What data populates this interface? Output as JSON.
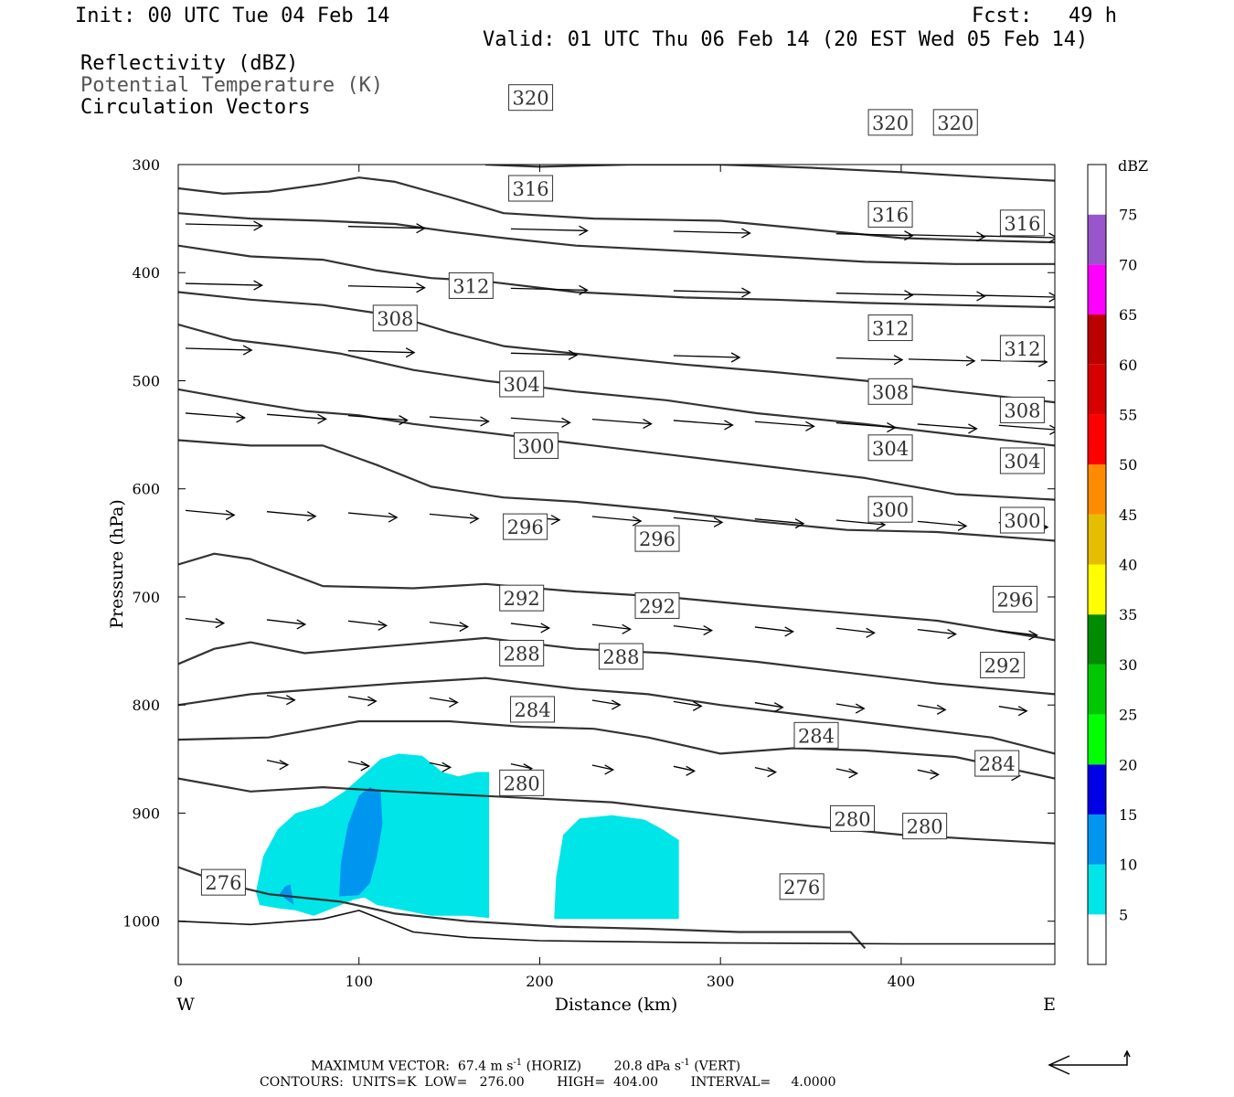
{
  "header": {
    "init": "Init: 00 UTC Tue 04 Feb 14",
    "fcst": "Fcst:   49 h",
    "valid": "Valid: 01 UTC Thu 06 Feb 14 (20 EST Wed 05 Feb 14)",
    "fields": [
      "Reflectivity (dBZ)",
      "Potential Temperature (K)",
      "Circulation Vectors"
    ]
  },
  "chart_data": {
    "type": "cross-section",
    "xlabel": "Distance (km)",
    "ylabel": "Pressure (hPa)",
    "xlim": [
      0,
      485
    ],
    "ylim": [
      1040,
      300
    ],
    "x_ticks": [
      0,
      100,
      200,
      300,
      400
    ],
    "y_ticks": [
      300,
      400,
      500,
      600,
      700,
      800,
      900,
      1000
    ],
    "west_label": "W",
    "east_label": "E",
    "colorbar": {
      "unit": "dBZ",
      "levels": [
        5,
        10,
        15,
        20,
        25,
        30,
        35,
        40,
        45,
        50,
        55,
        60,
        65,
        70,
        75
      ],
      "colors": [
        "#ffffff",
        "#00e5e8",
        "#0096f0",
        "#0000e6",
        "#00ff00",
        "#00c800",
        "#008c00",
        "#ffff00",
        "#e6be00",
        "#ff8c00",
        "#ff0000",
        "#d70000",
        "#bb0000",
        "#ff00ff",
        "#9955cc",
        "#ffffff"
      ]
    },
    "reflectivity_areas": [
      {
        "level": 5,
        "color": "#00e5e8",
        "points": [
          [
            43,
            973
          ],
          [
            47,
            940
          ],
          [
            55,
            915
          ],
          [
            65,
            900
          ],
          [
            80,
            893
          ],
          [
            92,
            880
          ],
          [
            102,
            865
          ],
          [
            112,
            850
          ],
          [
            122,
            845
          ],
          [
            135,
            847
          ],
          [
            146,
            862
          ],
          [
            155,
            866
          ],
          [
            165,
            862
          ],
          [
            172,
            862
          ],
          [
            172,
            997
          ],
          [
            160,
            995
          ],
          [
            140,
            995
          ],
          [
            125,
            990
          ],
          [
            110,
            985
          ],
          [
            103,
            978
          ],
          [
            97,
            980
          ],
          [
            90,
            985
          ],
          [
            75,
            995
          ],
          [
            65,
            990
          ],
          [
            55,
            988
          ],
          [
            45,
            985
          ]
        ]
      },
      {
        "level": 5,
        "color": "#00e5e8",
        "points": [
          [
            208,
            998
          ],
          [
            209,
            960
          ],
          [
            213,
            920
          ],
          [
            222,
            905
          ],
          [
            240,
            902
          ],
          [
            258,
            906
          ],
          [
            268,
            915
          ],
          [
            277,
            925
          ],
          [
            277,
            998
          ]
        ]
      },
      {
        "level": 10,
        "color": "#0096f0",
        "points": [
          [
            89,
            977
          ],
          [
            90,
            945
          ],
          [
            94,
            910
          ],
          [
            100,
            884
          ],
          [
            106,
            876
          ],
          [
            112,
            880
          ],
          [
            113,
            910
          ],
          [
            110,
            940
          ],
          [
            106,
            965
          ],
          [
            100,
            976
          ]
        ]
      },
      {
        "level": 10,
        "color": "#0096f0",
        "points": [
          [
            56,
            975
          ],
          [
            59,
            968
          ],
          [
            62,
            966
          ],
          [
            64,
            985
          ]
        ]
      }
    ],
    "theta_levels": [
      {
        "value": 276,
        "labels": [
          [
            25,
            964
          ],
          [
            345,
            968
          ]
        ]
      },
      {
        "value": 280,
        "labels": [
          [
            190,
            872
          ],
          [
            373,
            905
          ],
          [
            413,
            912
          ]
        ]
      },
      {
        "value": 284,
        "labels": [
          [
            196,
            804
          ],
          [
            353,
            828
          ],
          [
            453,
            854
          ]
        ]
      },
      {
        "value": 288,
        "labels": [
          [
            190,
            752
          ],
          [
            245,
            755
          ]
        ]
      },
      {
        "value": 292,
        "labels": [
          [
            190,
            701
          ],
          [
            265,
            708
          ],
          [
            456,
            763
          ]
        ]
      },
      {
        "value": 296,
        "labels": [
          [
            192,
            635
          ],
          [
            265,
            646
          ],
          [
            463,
            702
          ]
        ]
      },
      {
        "value": 300,
        "labels": [
          [
            198,
            560
          ],
          [
            394,
            619
          ],
          [
            467,
            629
          ]
        ]
      },
      {
        "value": 304,
        "labels": [
          [
            190,
            503
          ],
          [
            394,
            562
          ],
          [
            467,
            574
          ]
        ]
      },
      {
        "value": 308,
        "labels": [
          [
            120,
            442
          ],
          [
            394,
            510
          ],
          [
            467,
            527
          ]
        ]
      },
      {
        "value": 312,
        "labels": [
          [
            162,
            412
          ],
          [
            394,
            451
          ],
          [
            467,
            470
          ]
        ]
      },
      {
        "value": 316,
        "labels": [
          [
            195,
            322
          ],
          [
            394,
            346
          ],
          [
            467,
            354
          ]
        ]
      },
      {
        "value": 320,
        "labels": [
          [
            195,
            238
          ],
          [
            394,
            261
          ],
          [
            430,
            261
          ]
        ]
      }
    ],
    "max_vector": "MAXIMUM VECTOR:  67.4 m s",
    "max_vector_horiz_unit": "(HORIZ)",
    "max_vector_vert": "20.8 dPa s",
    "max_vector_vert_unit": "(VERT)",
    "superscript": "-1",
    "contours_info": "CONTOURS:  UNITS=K  LOW=   276.00        HIGH=  404.00        INTERVAL=     4.0000"
  }
}
